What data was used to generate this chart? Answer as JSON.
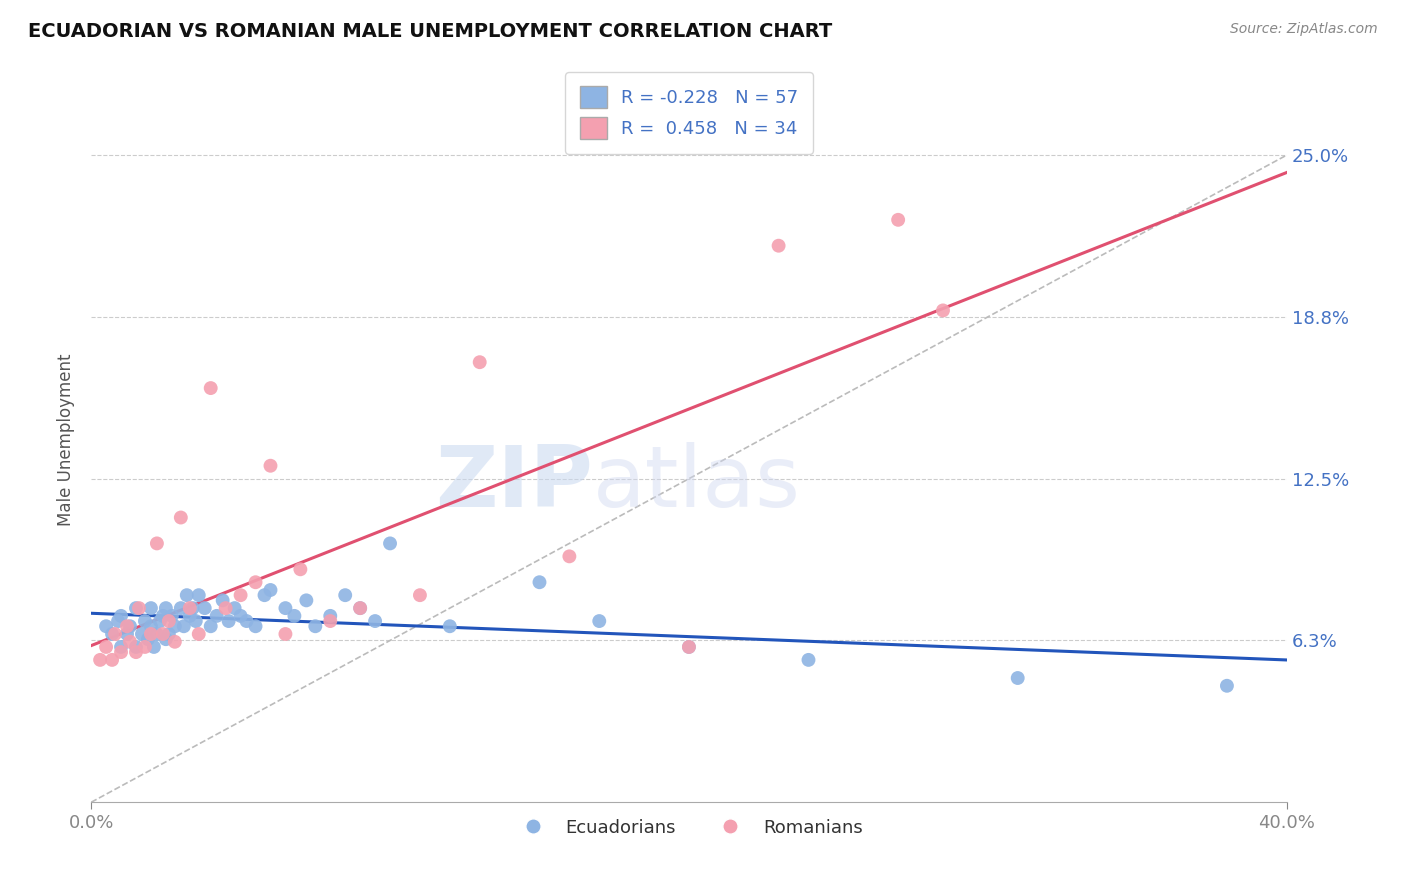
{
  "title": "ECUADORIAN VS ROMANIAN MALE UNEMPLOYMENT CORRELATION CHART",
  "source": "Source: ZipAtlas.com",
  "ylabel": "Male Unemployment",
  "xlim": [
    0.0,
    0.4
  ],
  "ylim": [
    0.0,
    0.28
  ],
  "yticks": [
    0.0,
    0.0625,
    0.125,
    0.1875,
    0.25
  ],
  "ytick_labels": [
    "",
    "6.3%",
    "12.5%",
    "18.8%",
    "25.0%"
  ],
  "xticks": [
    0.0,
    0.4
  ],
  "xtick_labels": [
    "0.0%",
    "40.0%"
  ],
  "background_color": "#ffffff",
  "grid_color": "#cccccc",
  "ecuadorians": {
    "x": [
      0.005,
      0.007,
      0.009,
      0.01,
      0.01,
      0.012,
      0.013,
      0.015,
      0.015,
      0.017,
      0.018,
      0.019,
      0.02,
      0.02,
      0.021,
      0.022,
      0.023,
      0.024,
      0.025,
      0.025,
      0.026,
      0.027,
      0.028,
      0.03,
      0.031,
      0.032,
      0.033,
      0.034,
      0.035,
      0.036,
      0.038,
      0.04,
      0.042,
      0.044,
      0.046,
      0.048,
      0.05,
      0.052,
      0.055,
      0.058,
      0.06,
      0.065,
      0.068,
      0.072,
      0.075,
      0.08,
      0.085,
      0.09,
      0.095,
      0.1,
      0.12,
      0.15,
      0.17,
      0.2,
      0.24,
      0.31,
      0.38
    ],
    "y": [
      0.068,
      0.065,
      0.07,
      0.06,
      0.072,
      0.065,
      0.068,
      0.06,
      0.075,
      0.065,
      0.07,
      0.063,
      0.068,
      0.075,
      0.06,
      0.065,
      0.07,
      0.072,
      0.063,
      0.075,
      0.065,
      0.072,
      0.068,
      0.075,
      0.068,
      0.08,
      0.072,
      0.075,
      0.07,
      0.08,
      0.075,
      0.068,
      0.072,
      0.078,
      0.07,
      0.075,
      0.072,
      0.07,
      0.068,
      0.08,
      0.082,
      0.075,
      0.072,
      0.078,
      0.068,
      0.072,
      0.08,
      0.075,
      0.07,
      0.1,
      0.068,
      0.085,
      0.07,
      0.06,
      0.055,
      0.048,
      0.045
    ],
    "color": "#8eb4e3",
    "R": -0.228,
    "N": 57,
    "line_color": "#2255bb"
  },
  "romanians": {
    "x": [
      0.003,
      0.005,
      0.007,
      0.008,
      0.01,
      0.012,
      0.013,
      0.015,
      0.016,
      0.018,
      0.02,
      0.022,
      0.024,
      0.026,
      0.028,
      0.03,
      0.033,
      0.036,
      0.04,
      0.045,
      0.05,
      0.055,
      0.06,
      0.065,
      0.07,
      0.08,
      0.09,
      0.11,
      0.13,
      0.16,
      0.2,
      0.23,
      0.27,
      0.285
    ],
    "y": [
      0.055,
      0.06,
      0.055,
      0.065,
      0.058,
      0.068,
      0.062,
      0.058,
      0.075,
      0.06,
      0.065,
      0.1,
      0.065,
      0.07,
      0.062,
      0.11,
      0.075,
      0.065,
      0.16,
      0.075,
      0.08,
      0.085,
      0.13,
      0.065,
      0.09,
      0.07,
      0.075,
      0.08,
      0.17,
      0.095,
      0.06,
      0.215,
      0.225,
      0.19
    ],
    "color": "#f4a0b0",
    "R": 0.458,
    "N": 34,
    "line_color": "#e05070"
  },
  "ref_line": {
    "x": [
      0.0,
      0.4
    ],
    "y": [
      0.0,
      0.25
    ],
    "color": "#bbbbbb",
    "linestyle": "--",
    "linewidth": 1.2
  }
}
